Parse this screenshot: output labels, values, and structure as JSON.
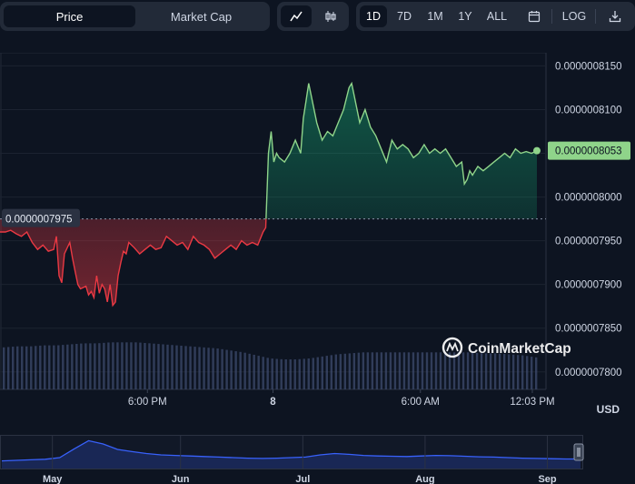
{
  "toolbar": {
    "metric_tabs": [
      {
        "label": "Price",
        "active": true
      },
      {
        "label": "Market Cap",
        "active": false
      }
    ],
    "chart_type_icons": [
      {
        "icon": "line-chart-icon",
        "active": true
      },
      {
        "icon": "candlestick-icon",
        "active": false
      }
    ],
    "ranges": [
      {
        "label": "1D",
        "active": true
      },
      {
        "label": "7D",
        "active": false
      },
      {
        "label": "1M",
        "active": false
      },
      {
        "label": "1Y",
        "active": false
      },
      {
        "label": "ALL",
        "active": false
      }
    ],
    "calendar_icon": "calendar-icon",
    "log_label": "LOG",
    "download_icon": "download-icon"
  },
  "colors": {
    "up": "#16c784",
    "up_line": "#8fd48a",
    "down": "#ea3943",
    "background": "#0d1421",
    "navigator_line": "#3861fb"
  },
  "currency_label": "USD",
  "watermark": "CoinMarketCap",
  "chart_data": {
    "type": "line",
    "title": "",
    "xlabel": "",
    "ylabel": "",
    "reference_price": 7.975e-07,
    "reference_label": "0.0000007975",
    "current_price": 8.053e-07,
    "current_label": "0.0000008053",
    "ylim": [
      7.78e-07,
      8.165e-07
    ],
    "y_ticks": [
      "0.0000008150",
      "0.0000008100",
      "0.0000008000",
      "0.0000007950",
      "0.0000007900",
      "0.0000007850",
      "0.0000007800"
    ],
    "y_tick_values": [
      8.15e-07,
      8.1e-07,
      8e-07,
      7.95e-07,
      7.9e-07,
      7.85e-07,
      7.8e-07
    ],
    "x_ticks": [
      "6:00 PM",
      "8",
      "6:00 AM",
      "12:03 PM"
    ],
    "x_tick_positions": [
      0.27,
      0.5,
      0.77,
      0.975
    ],
    "series": [
      {
        "x": [
          0,
          0.01,
          0.02,
          0.03,
          0.04,
          0.05,
          0.06,
          0.07,
          0.08,
          0.09,
          0.1,
          0.105,
          0.11,
          0.115,
          0.12,
          0.13,
          0.135,
          0.14,
          0.145,
          0.15,
          0.16,
          0.165,
          0.17,
          0.175,
          0.18,
          0.185,
          0.19,
          0.195,
          0.2,
          0.205,
          0.21,
          0.215,
          0.22,
          0.225,
          0.23,
          0.235,
          0.24,
          0.25,
          0.26,
          0.27,
          0.28,
          0.29,
          0.3,
          0.31,
          0.32,
          0.33,
          0.34,
          0.35,
          0.36,
          0.37,
          0.38,
          0.39,
          0.4,
          0.41,
          0.42,
          0.43,
          0.44,
          0.45,
          0.46,
          0.47,
          0.48,
          0.49,
          0.495,
          0.5,
          0.505,
          0.51,
          0.515,
          0.52,
          0.53,
          0.54,
          0.55,
          0.56,
          0.565,
          0.57,
          0.575,
          0.58,
          0.59,
          0.6,
          0.61,
          0.62,
          0.63,
          0.64,
          0.65,
          0.655,
          0.66,
          0.67,
          0.68,
          0.69,
          0.7,
          0.71,
          0.72,
          0.73,
          0.74,
          0.75,
          0.76,
          0.77,
          0.78,
          0.79,
          0.8,
          0.81,
          0.82,
          0.83,
          0.84,
          0.85,
          0.86,
          0.865,
          0.87,
          0.875,
          0.88,
          0.89,
          0.9,
          0.91,
          0.92,
          0.93,
          0.94,
          0.95,
          0.96,
          0.97,
          0.98,
          0.99,
          1.0
        ],
        "values": [
          7.96e-07,
          7.96e-07,
          7.962e-07,
          7.958e-07,
          7.955e-07,
          7.96e-07,
          7.948e-07,
          7.94e-07,
          7.945e-07,
          7.938e-07,
          7.94e-07,
          7.955e-07,
          7.91e-07,
          7.902e-07,
          7.935e-07,
          7.948e-07,
          7.93e-07,
          7.915e-07,
          7.9e-07,
          7.895e-07,
          7.898e-07,
          7.888e-07,
          7.892e-07,
          7.885e-07,
          7.91e-07,
          7.89e-07,
          7.9e-07,
          7.895e-07,
          7.88e-07,
          7.9e-07,
          7.876e-07,
          7.88e-07,
          7.91e-07,
          7.925e-07,
          7.938e-07,
          7.935e-07,
          7.948e-07,
          7.942e-07,
          7.935e-07,
          7.94e-07,
          7.945e-07,
          7.94e-07,
          7.942e-07,
          7.955e-07,
          7.95e-07,
          7.945e-07,
          7.948e-07,
          7.94e-07,
          7.955e-07,
          7.948e-07,
          7.945e-07,
          7.94e-07,
          7.93e-07,
          7.935e-07,
          7.94e-07,
          7.945e-07,
          7.94e-07,
          7.95e-07,
          7.945e-07,
          7.948e-07,
          7.945e-07,
          7.96e-07,
          7.965e-07,
          8.05e-07,
          8.075e-07,
          8.04e-07,
          8.05e-07,
          8.045e-07,
          8.04e-07,
          8.05e-07,
          8.065e-07,
          8.05e-07,
          8.09e-07,
          8.11e-07,
          8.13e-07,
          8.115e-07,
          8.085e-07,
          8.065e-07,
          8.075e-07,
          8.07e-07,
          8.085e-07,
          8.1e-07,
          8.125e-07,
          8.13e-07,
          8.115e-07,
          8.085e-07,
          8.1e-07,
          8.08e-07,
          8.07e-07,
          8.055e-07,
          8.04e-07,
          8.065e-07,
          8.055e-07,
          8.06e-07,
          8.055e-07,
          8.045e-07,
          8.05e-07,
          8.06e-07,
          8.05e-07,
          8.055e-07,
          8.05e-07,
          8.055e-07,
          8.045e-07,
          8.035e-07,
          8.04e-07,
          8.015e-07,
          8.02e-07,
          8.03e-07,
          8.025e-07,
          8.035e-07,
          8.03e-07,
          8.035e-07,
          8.04e-07,
          8.045e-07,
          8.05e-07,
          8.045e-07,
          8.055e-07,
          8.05e-07,
          8.052e-07,
          8.05e-07,
          8.053e-07
        ]
      }
    ],
    "volume": {
      "relative": [
        0.42,
        0.43,
        0.43,
        0.44,
        0.44,
        0.45,
        0.46,
        0.46,
        0.47,
        0.47,
        0.47,
        0.46,
        0.45,
        0.44,
        0.43,
        0.42,
        0.41,
        0.39,
        0.37,
        0.34,
        0.31,
        0.3,
        0.3,
        0.31,
        0.33,
        0.35,
        0.36,
        0.37,
        0.37,
        0.37,
        0.37,
        0.37,
        0.37,
        0.37,
        0.37,
        0.37,
        0.36,
        0.36,
        0.35,
        0.34,
        0.32
      ]
    },
    "navigator": {
      "x_ticks": [
        "May",
        "Jun",
        "Jul",
        "Aug",
        "Sep"
      ],
      "x_tick_positions": [
        0.09,
        0.31,
        0.52,
        0.73,
        0.94
      ],
      "values": [
        0.18,
        0.2,
        0.22,
        0.24,
        0.3,
        0.62,
        0.92,
        0.8,
        0.6,
        0.52,
        0.45,
        0.4,
        0.38,
        0.36,
        0.34,
        0.32,
        0.3,
        0.28,
        0.27,
        0.28,
        0.3,
        0.32,
        0.4,
        0.45,
        0.42,
        0.38,
        0.36,
        0.35,
        0.34,
        0.36,
        0.38,
        0.37,
        0.35,
        0.33,
        0.32,
        0.3,
        0.28,
        0.27,
        0.26,
        0.25,
        0.25
      ]
    }
  }
}
